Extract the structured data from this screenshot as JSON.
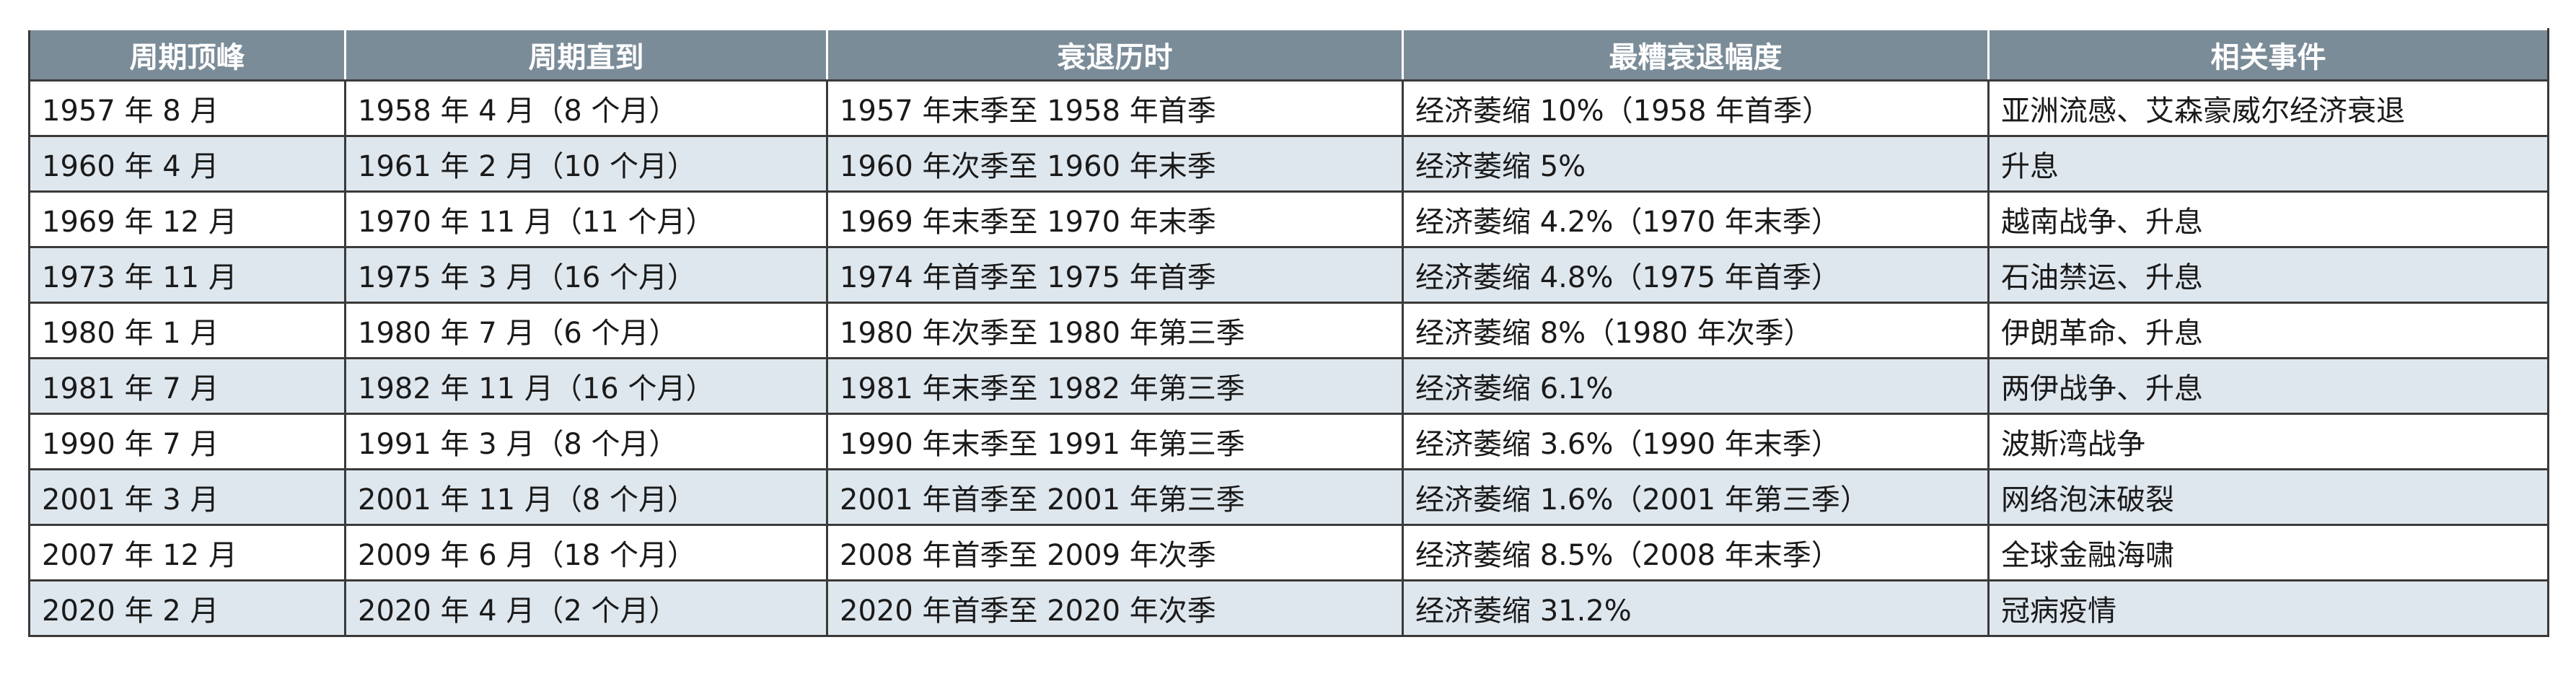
{
  "headers": [
    "周期顶峰",
    "周期直到",
    "衰退历时",
    "最糟衰退幅度",
    "相关事件"
  ],
  "rows": [
    [
      "1957 年 8 月",
      "1958 年 4 月（8 个月）",
      "1957 年末季至 1958 年首季",
      "经济萎缩 10%（1958 年首季）",
      "亚洲流感、艾森豪威尔经济衰退"
    ],
    [
      "1960 年 4 月",
      "1961 年 2 月（10 个月）",
      "1960 年次季至 1960 年末季",
      "经济萎缩 5%",
      "升息"
    ],
    [
      "1969 年 12 月",
      "1970 年 11 月（11 个月）",
      "1969 年末季至 1970 年末季",
      "经济萎缩 4.2%（1970 年末季）",
      "越南战争、升息"
    ],
    [
      "1973 年 11 月",
      "1975 年 3 月（16 个月）",
      "1974 年首季至 1975 年首季",
      "经济萎缩 4.8%（1975 年首季）",
      "石油禁运、升息"
    ],
    [
      "1980 年 1 月",
      "1980 年 7 月（6 个月）",
      "1980 年次季至 1980 年第三季",
      "经济萎缩 8%（1980 年次季）",
      "伊朗革命、升息"
    ],
    [
      "1981 年 7 月",
      "1982 年 11 月（16 个月）",
      "1981 年末季至 1982 年第三季",
      "经济萎缩 6.1%",
      "两伊战争、升息"
    ],
    [
      "1990 年 7 月",
      "1991 年 3 月（8 个月）",
      "1990 年末季至 1991 年第三季",
      "经济萎缩 3.6%（1990 年末季）",
      "波斯湾战争"
    ],
    [
      "2001 年 3 月",
      "2001 年 11 月（8 个月）",
      "2001 年首季至 2001 年第三季",
      "经济萎缩 1.6%（2001 年第三季）",
      "网络泡沫破裂"
    ],
    [
      "2007 年 12 月",
      "2009 年 6 月（18 个月）",
      "2008 年首季至 2009 年次季",
      "经济萎缩 8.5%（2008 年末季）",
      "全球金融海啸"
    ],
    [
      "2020 年 2 月",
      "2020 年 4 月（2 个月）",
      "2020 年首季至 2020 年次季",
      "经济萎缩 31.2%",
      "冠病疫情"
    ]
  ]
}
